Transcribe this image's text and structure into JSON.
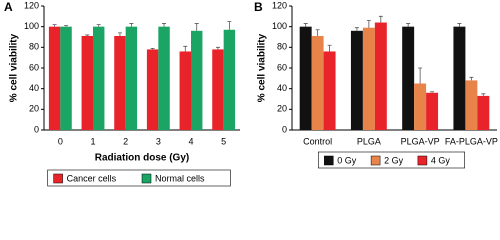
{
  "chart_data": [
    {
      "type": "bar",
      "panel_label": "A",
      "x_label": "Radiation dose (Gy)",
      "y_label": "% cell viability",
      "categories": [
        "0",
        "1",
        "2",
        "3",
        "4",
        "5"
      ],
      "series": [
        {
          "name": "Cancer cells",
          "color": "#e8242a",
          "values": [
            100,
            91,
            91,
            78,
            76,
            78
          ],
          "errors": [
            2,
            1,
            3,
            1,
            5,
            2
          ]
        },
        {
          "name": "Normal cells",
          "color": "#1aa564",
          "values": [
            100,
            100,
            100,
            100,
            96,
            97
          ],
          "errors": [
            1,
            2,
            3,
            3,
            7,
            8
          ]
        }
      ],
      "ylim": [
        0,
        120
      ],
      "yticks": [
        0,
        20,
        40,
        60,
        80,
        100,
        120
      ]
    },
    {
      "type": "bar",
      "panel_label": "B",
      "y_label": "% cell viability",
      "categories": [
        "Control",
        "PLGA",
        "PLGA-VP",
        "FA-PLGA-VP"
      ],
      "series": [
        {
          "name": "0 Gy",
          "color": "#111111",
          "values": [
            100,
            96,
            100,
            100
          ],
          "errors": [
            3,
            3,
            3,
            3
          ]
        },
        {
          "name": "2 Gy",
          "color": "#e8834a",
          "values": [
            91,
            99,
            45,
            48
          ],
          "errors": [
            6,
            7,
            15,
            3
          ]
        },
        {
          "name": "4 Gy",
          "color": "#e8242a",
          "values": [
            76,
            104,
            36,
            33
          ],
          "errors": [
            6,
            6,
            1,
            2
          ]
        }
      ],
      "ylim": [
        0,
        120
      ],
      "yticks": [
        0,
        20,
        40,
        60,
        80,
        100,
        120
      ]
    }
  ]
}
